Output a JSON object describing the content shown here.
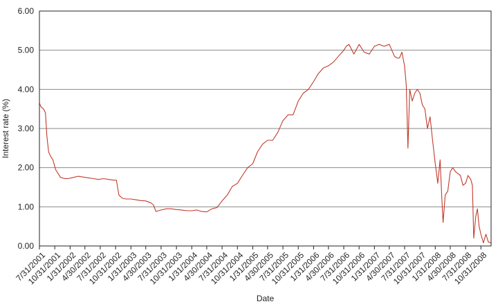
{
  "chart_data": {
    "type": "line",
    "xlabel": "Date",
    "ylabel": "Interest rate (%)",
    "ylim": [
      0,
      6
    ],
    "yticks": [
      "0.00",
      "1.00",
      "2.00",
      "3.00",
      "4.00",
      "5.00",
      "6.00"
    ],
    "xlim": [
      "2001-07-31",
      "2008-12-31"
    ],
    "x_tick_labels": [
      "7/31/2001",
      "10/31/2001",
      "1/31/2002",
      "4/30/2002",
      "7/31/2002",
      "10/31/2002",
      "1/31/2003",
      "4/30/2003",
      "7/31/2003",
      "10/31/2003",
      "1/31/2004",
      "4/30/2004",
      "7/31/2004",
      "10/31/2004",
      "1/31/2005",
      "4/30/2005",
      "7/31/2005",
      "10/31/2005",
      "1/31/2006",
      "4/30/2006",
      "7/31/2006",
      "10/31/2006",
      "1/31/2007",
      "4/30/2007",
      "7/31/2007",
      "10/31/2007",
      "1/31/2008",
      "4/30/2008",
      "7/31/2008",
      "10/31/2008"
    ],
    "grid": true,
    "line_color": "#c0392b",
    "series": [
      {
        "x": [
          "2001-07-31",
          "2001-08-10",
          "2001-08-25",
          "2001-09-05",
          "2001-09-14",
          "2001-09-24",
          "2001-10-05",
          "2001-10-20",
          "2001-11-05",
          "2001-11-20",
          "2001-12-05",
          "2001-12-31",
          "2002-01-20",
          "2002-02-20",
          "2002-03-20",
          "2002-04-20",
          "2002-05-20",
          "2002-06-20",
          "2002-07-20",
          "2002-08-20",
          "2002-09-20",
          "2002-10-20",
          "2002-11-05",
          "2002-11-20",
          "2002-12-10",
          "2002-12-31",
          "2003-01-31",
          "2003-02-28",
          "2003-03-31",
          "2003-04-30",
          "2003-05-31",
          "2003-06-15",
          "2003-06-30",
          "2003-07-31",
          "2003-08-31",
          "2003-09-30",
          "2003-10-31",
          "2003-11-30",
          "2003-12-31",
          "2004-01-31",
          "2004-02-29",
          "2004-03-31",
          "2004-04-30",
          "2004-05-31",
          "2004-06-30",
          "2004-07-31",
          "2004-08-31",
          "2004-09-30",
          "2004-10-31",
          "2004-11-30",
          "2004-12-31",
          "2005-01-31",
          "2005-02-28",
          "2005-03-31",
          "2005-04-30",
          "2005-05-31",
          "2005-06-30",
          "2005-07-31",
          "2005-08-31",
          "2005-09-30",
          "2005-10-31",
          "2005-11-30",
          "2005-12-31",
          "2006-01-31",
          "2006-02-28",
          "2006-03-31",
          "2006-04-30",
          "2006-05-31",
          "2006-06-30",
          "2006-07-31",
          "2006-08-15",
          "2006-08-31",
          "2006-09-30",
          "2006-10-31",
          "2006-11-30",
          "2006-12-31",
          "2007-01-31",
          "2007-02-28",
          "2007-03-31",
          "2007-04-30",
          "2007-05-31",
          "2007-06-15",
          "2007-06-30",
          "2007-07-15",
          "2007-07-31",
          "2007-08-10",
          "2007-08-20",
          "2007-08-31",
          "2007-09-15",
          "2007-09-30",
          "2007-10-15",
          "2007-10-31",
          "2007-11-15",
          "2007-11-30",
          "2007-12-15",
          "2007-12-31",
          "2008-01-15",
          "2008-01-31",
          "2008-02-15",
          "2008-02-29",
          "2008-03-10",
          "2008-03-18",
          "2008-03-31",
          "2008-04-15",
          "2008-04-30",
          "2008-05-15",
          "2008-05-31",
          "2008-06-15",
          "2008-06-30",
          "2008-07-15",
          "2008-07-31",
          "2008-08-15",
          "2008-08-31",
          "2008-09-10",
          "2008-09-18",
          "2008-09-30",
          "2008-10-10",
          "2008-10-20",
          "2008-10-31",
          "2008-11-15",
          "2008-11-30",
          "2008-12-15",
          "2008-12-31"
        ],
        "values": [
          3.65,
          3.55,
          3.5,
          3.4,
          2.8,
          2.4,
          2.3,
          2.2,
          1.95,
          1.85,
          1.75,
          1.72,
          1.72,
          1.75,
          1.78,
          1.76,
          1.74,
          1.72,
          1.7,
          1.72,
          1.7,
          1.68,
          1.68,
          1.3,
          1.22,
          1.2,
          1.2,
          1.18,
          1.16,
          1.15,
          1.1,
          1.05,
          0.88,
          0.92,
          0.95,
          0.95,
          0.93,
          0.92,
          0.9,
          0.9,
          0.92,
          0.88,
          0.87,
          0.95,
          0.98,
          1.15,
          1.3,
          1.52,
          1.6,
          1.8,
          2.0,
          2.1,
          2.4,
          2.6,
          2.7,
          2.7,
          2.9,
          3.2,
          3.35,
          3.35,
          3.7,
          3.9,
          4.0,
          4.2,
          4.4,
          4.55,
          4.6,
          4.7,
          4.85,
          5.0,
          5.1,
          5.15,
          4.9,
          5.15,
          4.95,
          4.9,
          5.1,
          5.15,
          5.1,
          5.15,
          4.85,
          4.8,
          4.8,
          4.95,
          4.6,
          4.1,
          2.5,
          4.0,
          3.7,
          3.9,
          4.0,
          3.9,
          3.6,
          3.5,
          3.0,
          3.3,
          2.7,
          2.1,
          1.6,
          2.2,
          1.25,
          0.6,
          1.3,
          1.4,
          1.9,
          2.0,
          1.9,
          1.85,
          1.8,
          1.55,
          1.6,
          1.8,
          1.7,
          1.55,
          0.2,
          0.75,
          0.95,
          0.5,
          0.3,
          0.08,
          0.3,
          0.1,
          0.08
        ]
      }
    ]
  }
}
